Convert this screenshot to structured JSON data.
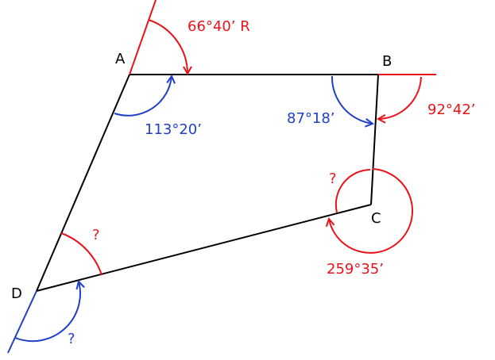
{
  "vertices": {
    "A": "A",
    "B": "B",
    "C": "C",
    "D": "D"
  },
  "colors": {
    "red": "#e8141c",
    "blue": "#1f3fc7",
    "black": "#000000"
  },
  "angles": {
    "deflection_a": "66°40’ R",
    "interior_a": "113°20’",
    "interior_b": "87°18’",
    "deflection_b": "92°42’",
    "exterior_c": "259°35’",
    "interior_c": "?",
    "interior_d": "?",
    "deflection_d": "?"
  }
}
